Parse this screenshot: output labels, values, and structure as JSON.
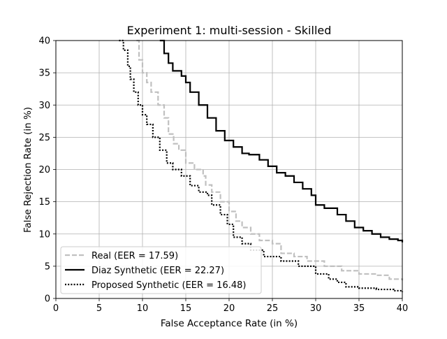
{
  "chart_data": {
    "type": "line",
    "title": "Experiment 1: multi-session - Skilled",
    "xlabel": "False Acceptance Rate (in %)",
    "ylabel": "False Rejection Rate (in %)",
    "xlim": [
      0,
      40
    ],
    "ylim": [
      0,
      40
    ],
    "xticks": [
      0,
      5,
      10,
      15,
      20,
      25,
      30,
      35,
      40
    ],
    "yticks": [
      0,
      5,
      10,
      15,
      20,
      25,
      30,
      35,
      40
    ],
    "grid": true,
    "legend_position": "lower-left",
    "series": [
      {
        "name": "Real (EER = 17.59)",
        "color": "#c0c0c0",
        "style": "dashed",
        "x": [
          9.3,
          9.6,
          10.0,
          10.5,
          11.0,
          11.8,
          12.5,
          13.0,
          13.6,
          14.2,
          15.0,
          16.0,
          17.0,
          17.3,
          18.0,
          19.0,
          20.0,
          20.8,
          21.5,
          22.5,
          23.5,
          25.0,
          26.0,
          27.5,
          29.0,
          31.0,
          33.0,
          35.0,
          37.0,
          38.5,
          40.0
        ],
        "y": [
          40.0,
          37.0,
          35.0,
          33.5,
          32.0,
          30.0,
          28.0,
          25.5,
          24.0,
          23.0,
          21.0,
          20.0,
          19.0,
          17.6,
          16.5,
          15.0,
          13.5,
          12.0,
          11.0,
          10.0,
          9.0,
          8.5,
          7.0,
          6.5,
          5.8,
          5.0,
          4.3,
          3.8,
          3.6,
          3.0,
          2.8
        ]
      },
      {
        "name": "Diaz Synthetic (EER = 22.27)",
        "color": "#000000",
        "style": "solid",
        "x": [
          12.0,
          12.5,
          13.0,
          13.5,
          14.5,
          15.0,
          15.5,
          16.5,
          17.5,
          18.5,
          19.5,
          20.5,
          21.5,
          22.3,
          23.5,
          24.5,
          25.5,
          26.5,
          27.5,
          28.5,
          29.5,
          30.0,
          31.0,
          32.5,
          33.5,
          34.5,
          35.5,
          36.5,
          37.5,
          38.5,
          39.5,
          40.0
        ],
        "y": [
          40.0,
          38.0,
          36.5,
          35.3,
          34.5,
          33.5,
          32.0,
          30.0,
          28.0,
          26.0,
          24.5,
          23.5,
          22.5,
          22.3,
          21.5,
          20.5,
          19.5,
          19.0,
          18.0,
          17.0,
          16.0,
          14.5,
          14.0,
          13.0,
          12.0,
          11.0,
          10.5,
          10.0,
          9.5,
          9.2,
          9.0,
          8.7
        ]
      },
      {
        "name": "Proposed Synthetic (EER = 16.48)",
        "color": "#000000",
        "style": "dotted",
        "x": [
          7.3,
          7.8,
          8.3,
          8.6,
          9.0,
          9.5,
          10.0,
          10.5,
          11.2,
          12.0,
          12.8,
          13.5,
          14.5,
          15.5,
          16.5,
          17.5,
          18.0,
          19.0,
          19.8,
          20.5,
          21.5,
          22.5,
          24.0,
          26.0,
          28.0,
          30.0,
          31.5,
          32.5,
          33.5,
          35.0,
          37.0,
          39.0,
          40.0
        ],
        "y": [
          40.0,
          38.5,
          36.0,
          34.0,
          32.0,
          30.0,
          28.5,
          27.0,
          25.0,
          23.0,
          21.0,
          20.0,
          19.0,
          17.5,
          16.5,
          16.0,
          14.5,
          13.0,
          11.5,
          9.5,
          8.5,
          7.5,
          6.5,
          5.8,
          5.0,
          3.8,
          3.0,
          2.5,
          1.8,
          1.6,
          1.4,
          1.2,
          1.0
        ]
      }
    ]
  }
}
